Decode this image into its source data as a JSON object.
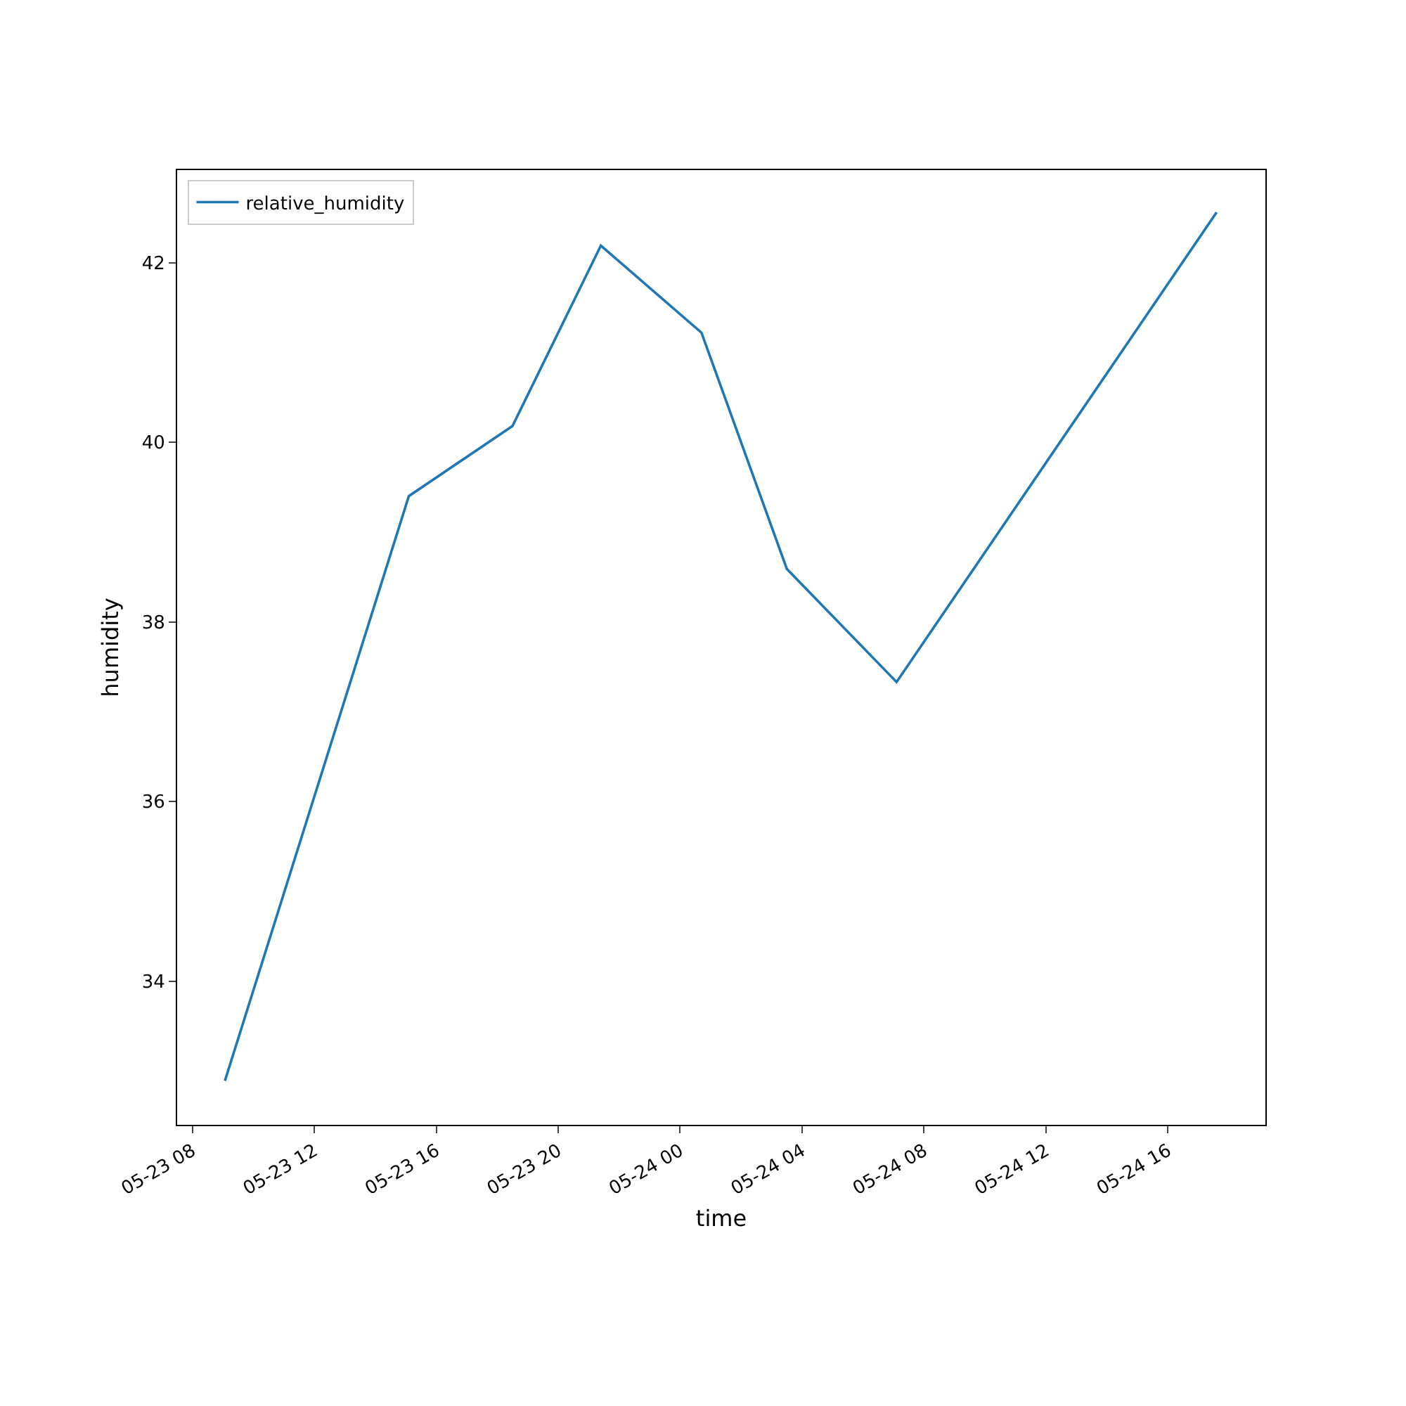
{
  "chart_data": {
    "type": "line",
    "xlabel": "time",
    "ylabel": "humidity",
    "x": [
      "--05-23T09:04",
      "--05-23T15:06",
      "--05-23T18:30",
      "--05-23T21:24",
      "--05-24T00:42",
      "--05-24T03:30",
      "--05-24T07:06",
      "--05-24T17:36"
    ],
    "series": [
      {
        "name": "relative_humidity",
        "color": "#1f77b4",
        "values": [
          32.89,
          39.4,
          40.18,
          42.19,
          41.22,
          38.59,
          37.33,
          42.56
        ]
      }
    ],
    "xlim": [
      "--05-23T07:30",
      "--05-24T19:12"
    ],
    "xticks": [
      {
        "value": "--05-23T08:00",
        "label": "05-23 08"
      },
      {
        "value": "--05-23T12:00",
        "label": "05-23 12"
      },
      {
        "value": "--05-23T16:00",
        "label": "05-23 16"
      },
      {
        "value": "--05-23T20:00",
        "label": "05-23 20"
      },
      {
        "value": "--05-24T00:00",
        "label": "05-24 00"
      },
      {
        "value": "--05-24T04:00",
        "label": "05-24 04"
      },
      {
        "value": "--05-24T08:00",
        "label": "05-24 08"
      },
      {
        "value": "--05-24T12:00",
        "label": "05-24 12"
      },
      {
        "value": "--05-24T16:00",
        "label": "05-24 16"
      }
    ],
    "ylim": [
      32.4,
      43.03
    ],
    "yticks": [
      34,
      36,
      38,
      40,
      42
    ],
    "grid": false,
    "legend": "top left",
    "line_style": "solid",
    "marker": "none"
  }
}
